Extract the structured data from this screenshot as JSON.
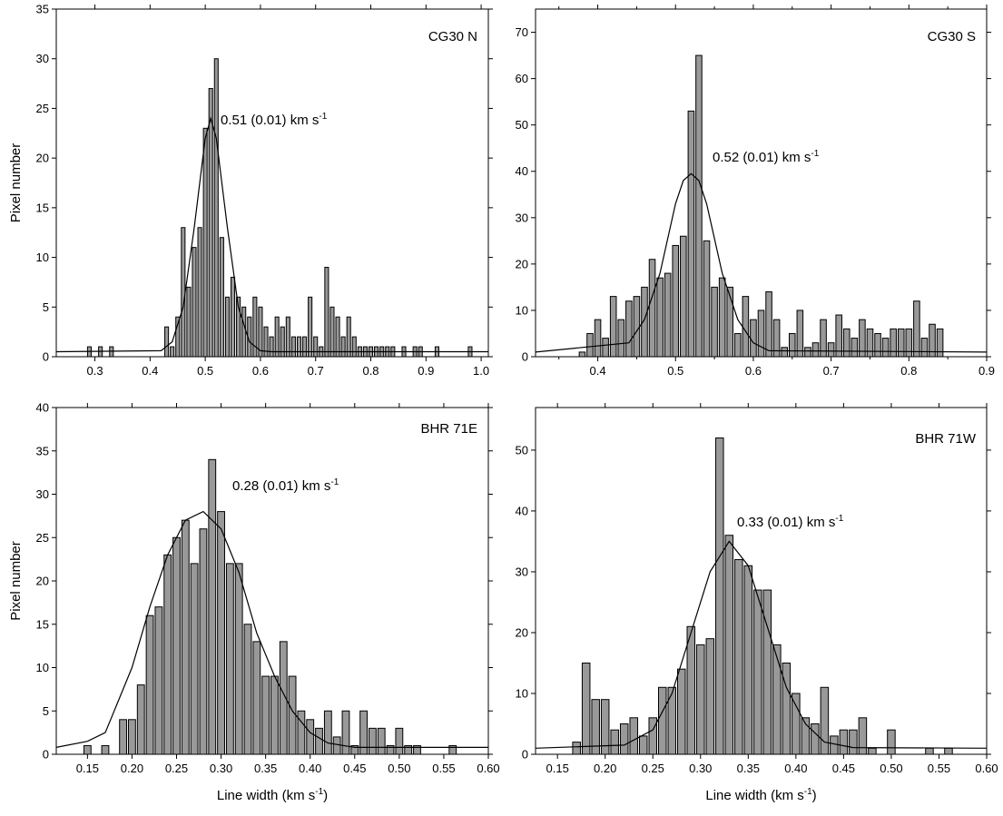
{
  "chart_data": [
    {
      "type": "histogram",
      "title": "CG30 N",
      "annotation": {
        "text": "0.51 (0.01) km s",
        "sup": "-1"
      },
      "y_label": "Pixel number",
      "bins": [
        0.285,
        0.295,
        0.305,
        0.315,
        0.325,
        0.335,
        0.345,
        0.355,
        0.365,
        0.375,
        0.385,
        0.395,
        0.405,
        0.415,
        0.425,
        0.435,
        0.445,
        0.455,
        0.465,
        0.475,
        0.485,
        0.495,
        0.505,
        0.515,
        0.525,
        0.535,
        0.545,
        0.555,
        0.565,
        0.575,
        0.585,
        0.595,
        0.605,
        0.615,
        0.625,
        0.635,
        0.645,
        0.655,
        0.665,
        0.675,
        0.685,
        0.695,
        0.705,
        0.715,
        0.725,
        0.735,
        0.745,
        0.755,
        0.765,
        0.775,
        0.785,
        0.795,
        0.805,
        0.815,
        0.825,
        0.835,
        0.845,
        0.855,
        0.865,
        0.875,
        0.885,
        0.895,
        0.905,
        0.915,
        0.925,
        0.935,
        0.945,
        0.955,
        0.965,
        0.975,
        0.985
      ],
      "counts": [
        1,
        0,
        1,
        0,
        1,
        0,
        0,
        0,
        0,
        0,
        0,
        0,
        0,
        0,
        3,
        1,
        4,
        13,
        7,
        11,
        13,
        23,
        27,
        30,
        12,
        6,
        8,
        6,
        5,
        4,
        6,
        5,
        3,
        2,
        4,
        3,
        4,
        2,
        2,
        2,
        6,
        2,
        1,
        9,
        5,
        4,
        2,
        4,
        2,
        1,
        1,
        1,
        1,
        1,
        1,
        1,
        0,
        1,
        0,
        1,
        1,
        0,
        0,
        1,
        0,
        0,
        0,
        0,
        0,
        1
      ],
      "fit": {
        "x": [
          0.23,
          0.42,
          0.44,
          0.46,
          0.48,
          0.5,
          0.51,
          0.52,
          0.54,
          0.56,
          0.58,
          0.6,
          0.62,
          1.013
        ],
        "y": [
          0.5,
          0.6,
          1.5,
          5,
          13,
          22,
          24,
          22,
          13,
          5,
          1.5,
          0.6,
          0.5,
          0.5
        ]
      },
      "xlim": [
        0.23,
        1.013
      ],
      "ylim": [
        0,
        35
      ],
      "xticks": [
        0.3,
        0.4,
        0.5,
        0.6,
        0.7,
        0.8,
        0.9,
        {
          "value": 1.0,
          "label": "1.0"
        }
      ],
      "yticks": [
        0,
        5,
        10,
        15,
        20,
        25,
        30,
        35
      ],
      "bar_color": "#999999",
      "line_color": "#000000"
    },
    {
      "type": "histogram",
      "title": "CG30 S",
      "annotation": {
        "text": "0.52 (0.01) km s",
        "sup": "-1"
      },
      "bins": [
        0.375,
        0.385,
        0.395,
        0.405,
        0.415,
        0.425,
        0.435,
        0.445,
        0.455,
        0.465,
        0.475,
        0.485,
        0.495,
        0.505,
        0.515,
        0.525,
        0.535,
        0.545,
        0.555,
        0.565,
        0.575,
        0.585,
        0.595,
        0.605,
        0.615,
        0.625,
        0.635,
        0.645,
        0.655,
        0.665,
        0.675,
        0.685,
        0.695,
        0.705,
        0.715,
        0.725,
        0.735,
        0.745,
        0.755,
        0.765,
        0.775,
        0.785,
        0.795,
        0.805,
        0.815,
        0.825,
        0.835,
        0.845
      ],
      "counts": [
        1,
        5,
        8,
        4,
        13,
        8,
        12,
        13,
        15,
        21,
        17,
        18,
        24,
        26,
        53,
        65,
        25,
        15,
        17,
        15,
        5,
        13,
        8,
        10,
        14,
        8,
        2,
        5,
        10,
        2,
        3,
        8,
        3,
        9,
        6,
        4,
        8,
        6,
        5,
        4,
        6,
        6,
        6,
        12,
        4,
        7,
        6
      ],
      "fit": {
        "x": [
          0.32,
          0.44,
          0.46,
          0.48,
          0.5,
          0.51,
          0.52,
          0.53,
          0.54,
          0.56,
          0.58,
          0.6,
          0.62,
          0.9
        ],
        "y": [
          1,
          3,
          8,
          18,
          33,
          38,
          39.5,
          38,
          33,
          18,
          8,
          3,
          1.3,
          1
        ]
      },
      "xlim": [
        0.32,
        0.9
      ],
      "ylim": [
        0,
        75
      ],
      "xticks": [
        0.35,
        0.4,
        0.45,
        0.5,
        0.55,
        0.6,
        0.65,
        0.7,
        0.75,
        0.8,
        0.85,
        0.9
      ],
      "xtick_labels_every": 2,
      "yticks": [
        0,
        10,
        20,
        30,
        40,
        50,
        60,
        70
      ],
      "bar_color": "#999999",
      "line_color": "#000000"
    },
    {
      "type": "histogram",
      "title": "BHR 71E",
      "annotation": {
        "text": "0.28 (0.01) km s",
        "sup": "-1"
      },
      "y_label": "Pixel number",
      "x_label": {
        "text": "Line width (km s",
        "sup": "-1",
        "end": ")"
      },
      "bins": [
        0.145,
        0.155,
        0.165,
        0.175,
        0.185,
        0.195,
        0.205,
        0.215,
        0.225,
        0.235,
        0.245,
        0.255,
        0.265,
        0.275,
        0.285,
        0.295,
        0.305,
        0.315,
        0.325,
        0.335,
        0.345,
        0.355,
        0.365,
        0.375,
        0.385,
        0.395,
        0.405,
        0.415,
        0.425,
        0.435,
        0.445,
        0.455,
        0.465,
        0.475,
        0.485,
        0.495,
        0.505,
        0.515,
        0.525,
        0.535,
        0.545,
        0.555,
        0.565
      ],
      "counts": [
        1,
        0,
        1,
        0,
        4,
        4,
        8,
        16,
        17,
        23,
        25,
        27,
        22,
        26,
        34,
        28,
        22,
        22,
        15,
        13,
        9,
        9,
        13,
        9,
        5,
        4,
        3,
        5,
        2,
        5,
        1,
        5,
        3,
        3,
        1,
        3,
        1,
        1,
        0,
        0,
        0,
        1
      ],
      "fit": {
        "x": [
          0.115,
          0.15,
          0.17,
          0.18,
          0.2,
          0.22,
          0.24,
          0.26,
          0.28,
          0.3,
          0.32,
          0.34,
          0.36,
          0.38,
          0.4,
          0.42,
          0.45,
          0.6
        ],
        "y": [
          0.8,
          1.5,
          2.5,
          5,
          10,
          17,
          23,
          27,
          28,
          26,
          21,
          14,
          9,
          5,
          2.5,
          1.3,
          0.8,
          0.8
        ]
      },
      "xlim": [
        0.115,
        0.6
      ],
      "ylim": [
        0,
        40
      ],
      "xticks": [
        0.15,
        {
          "value": 0.2,
          "label": "0.20"
        },
        0.25,
        {
          "value": 0.3,
          "label": "0.30"
        },
        0.35,
        {
          "value": 0.4,
          "label": "0.40"
        },
        0.45,
        {
          "value": 0.5,
          "label": "0.50"
        },
        0.55,
        {
          "value": 0.6,
          "label": "0.60"
        }
      ],
      "yticks": [
        0,
        5,
        10,
        15,
        20,
        25,
        30,
        35,
        40
      ],
      "bar_color": "#999999",
      "line_color": "#000000"
    },
    {
      "type": "histogram",
      "title": "BHR 71W",
      "annotation": {
        "text": "0.33 (0.01) km s",
        "sup": "-1"
      },
      "x_label": {
        "text": "Line width (km s",
        "sup": "-1",
        "end": ")"
      },
      "bins": [
        0.165,
        0.175,
        0.185,
        0.195,
        0.205,
        0.215,
        0.225,
        0.235,
        0.245,
        0.255,
        0.265,
        0.275,
        0.285,
        0.295,
        0.305,
        0.315,
        0.325,
        0.335,
        0.345,
        0.355,
        0.365,
        0.375,
        0.385,
        0.395,
        0.405,
        0.415,
        0.425,
        0.435,
        0.445,
        0.455,
        0.465,
        0.475,
        0.485,
        0.495,
        0.505,
        0.515,
        0.525,
        0.535,
        0.545,
        0.555,
        0.565
      ],
      "counts": [
        2,
        15,
        9,
        9,
        4,
        5,
        6,
        3,
        6,
        11,
        11,
        14,
        21,
        18,
        19,
        52,
        36,
        32,
        31,
        27,
        27,
        18,
        15,
        10,
        6,
        5,
        11,
        3,
        4,
        4,
        6,
        1,
        0,
        4,
        0,
        0,
        0,
        1,
        0,
        1
      ],
      "fit": {
        "x": [
          0.127,
          0.22,
          0.25,
          0.27,
          0.29,
          0.31,
          0.33,
          0.35,
          0.37,
          0.39,
          0.41,
          0.43,
          0.46,
          0.6
        ],
        "y": [
          1,
          1.5,
          4,
          10,
          20,
          30,
          35,
          31,
          21,
          11,
          5,
          2,
          1.1,
          1
        ]
      },
      "xlim": [
        0.127,
        0.6
      ],
      "ylim": [
        0,
        57
      ],
      "xticks": [
        0.15,
        {
          "value": 0.2,
          "label": "0.20"
        },
        0.25,
        {
          "value": 0.3,
          "label": "0.30"
        },
        0.35,
        {
          "value": 0.4,
          "label": "0.40"
        },
        0.45,
        {
          "value": 0.5,
          "label": "0.50"
        },
        0.55,
        {
          "value": 0.6,
          "label": "0.60"
        }
      ],
      "yticks": [
        0,
        10,
        20,
        30,
        40,
        50
      ],
      "bar_color": "#999999",
      "line_color": "#000000"
    }
  ]
}
